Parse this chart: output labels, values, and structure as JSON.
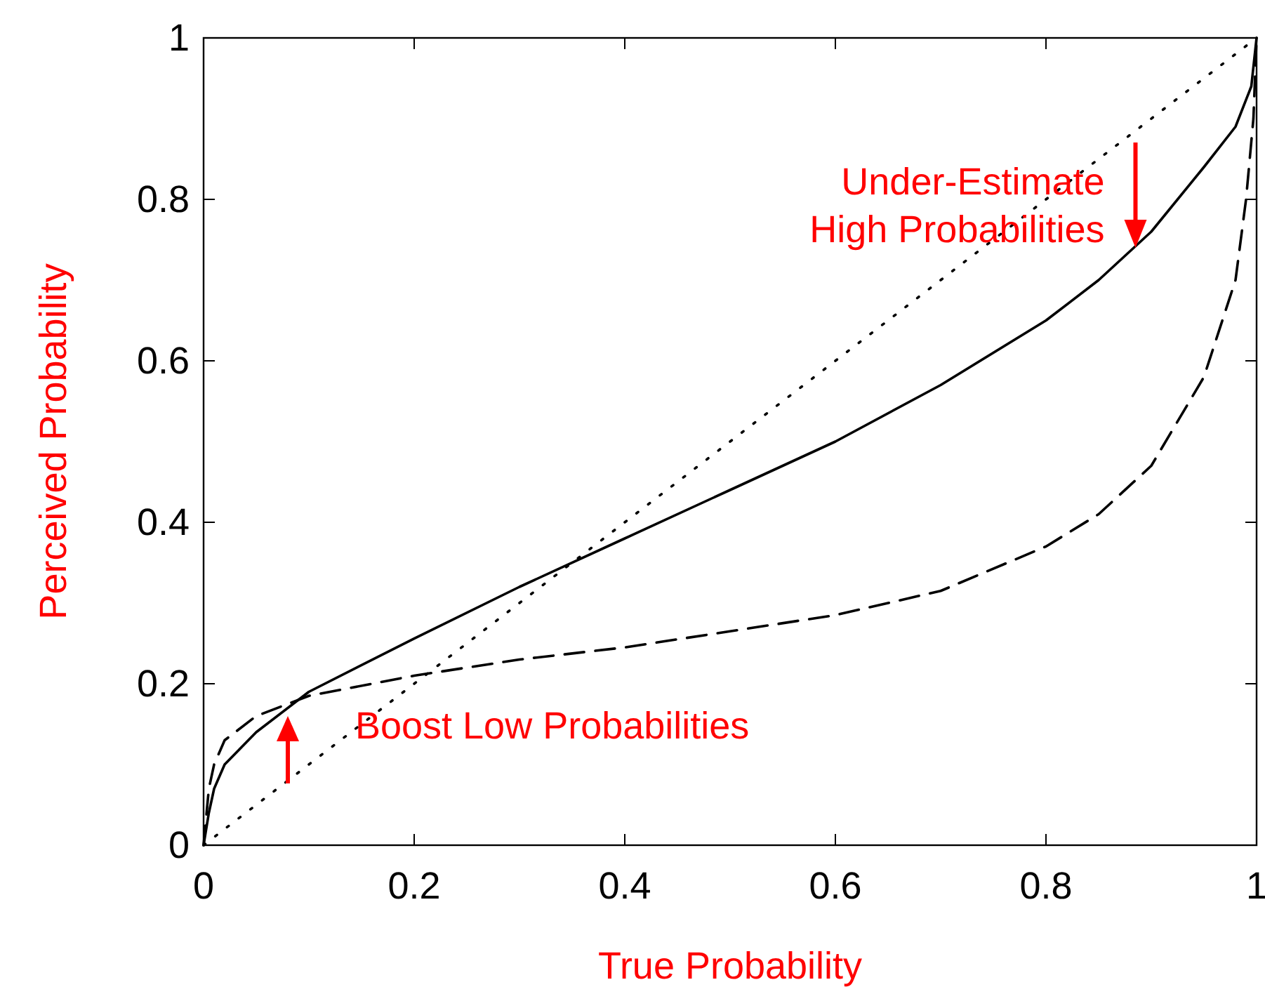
{
  "chart_data": {
    "type": "line",
    "xlabel": "True Probability",
    "ylabel": "Perceived Probability",
    "xlim": [
      0,
      1
    ],
    "ylim": [
      0,
      1
    ],
    "xticks": [
      0,
      0.2,
      0.4,
      0.6,
      0.8,
      1
    ],
    "yticks": [
      0,
      0.2,
      0.4,
      0.6,
      0.8,
      1
    ],
    "grid": false,
    "series": [
      {
        "color": "#000000",
        "line_style": "solid",
        "x": [
          0,
          0.005,
          0.01,
          0.02,
          0.05,
          0.1,
          0.2,
          0.3,
          0.4,
          0.5,
          0.6,
          0.7,
          0.8,
          0.85,
          0.9,
          0.95,
          0.98,
          0.995,
          1
        ],
        "values": [
          0,
          0.04,
          0.07,
          0.1,
          0.14,
          0.19,
          0.256,
          0.32,
          0.38,
          0.44,
          0.5,
          0.57,
          0.65,
          0.7,
          0.76,
          0.84,
          0.89,
          0.94,
          1
        ]
      },
      {
        "color": "#000000",
        "line_style": "dashed",
        "x": [
          0,
          0.005,
          0.01,
          0.02,
          0.05,
          0.1,
          0.2,
          0.3,
          0.4,
          0.5,
          0.6,
          0.7,
          0.8,
          0.85,
          0.9,
          0.95,
          0.98,
          0.99,
          0.997,
          1
        ],
        "values": [
          0,
          0.07,
          0.1,
          0.13,
          0.16,
          0.185,
          0.21,
          0.23,
          0.245,
          0.265,
          0.285,
          0.315,
          0.37,
          0.41,
          0.47,
          0.58,
          0.7,
          0.8,
          0.9,
          1
        ]
      },
      {
        "color": "#000000",
        "line_style": "dotted",
        "x": [
          0,
          1
        ],
        "values": [
          0,
          1
        ]
      }
    ],
    "annotations": [
      {
        "text": "Boost Low Probabilities",
        "x": 0.08,
        "y": 0.16
      },
      {
        "text": "Under-Estimate\nHigh Probabilities",
        "x": 0.885,
        "y": 0.74
      }
    ]
  }
}
